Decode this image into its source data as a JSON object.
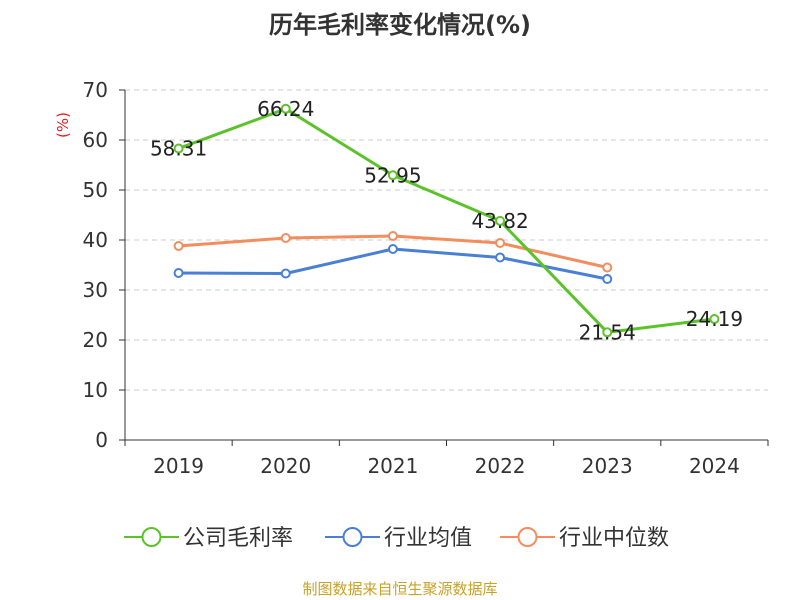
{
  "chart_data": {
    "type": "line",
    "title": "历年毛利率变化情况(%)",
    "ylabel": "(%)",
    "xlabel": "",
    "ylim": [
      0,
      70
    ],
    "yticks": [
      0,
      10,
      20,
      30,
      40,
      50,
      60,
      70
    ],
    "categories": [
      "2019",
      "2020",
      "2021",
      "2022",
      "2023",
      "2024"
    ],
    "grid": true,
    "legend_position": "bottom",
    "series": [
      {
        "name": "公司毛利率",
        "color": "#5cc22a",
        "values": [
          58.31,
          66.24,
          52.95,
          43.82,
          21.54,
          24.19
        ],
        "labels": [
          "58.31",
          "66.24",
          "52.95",
          "43.82",
          "21.54",
          "24.19"
        ]
      },
      {
        "name": "行业均值",
        "color": "#4a7fd6",
        "values": [
          33.4,
          33.3,
          38.2,
          36.5,
          32.2,
          null
        ],
        "labels": []
      },
      {
        "name": "行业中位数",
        "color": "#f38d5d",
        "values": [
          38.8,
          40.4,
          40.8,
          39.4,
          34.5,
          null
        ],
        "labels": []
      }
    ]
  },
  "source": "制图数据来自恒生聚源数据库",
  "colors": {
    "title": "#333333",
    "ylabel": "#e02020",
    "axis": "#333333",
    "grid": "#cccccc",
    "source": "#c9a227"
  }
}
